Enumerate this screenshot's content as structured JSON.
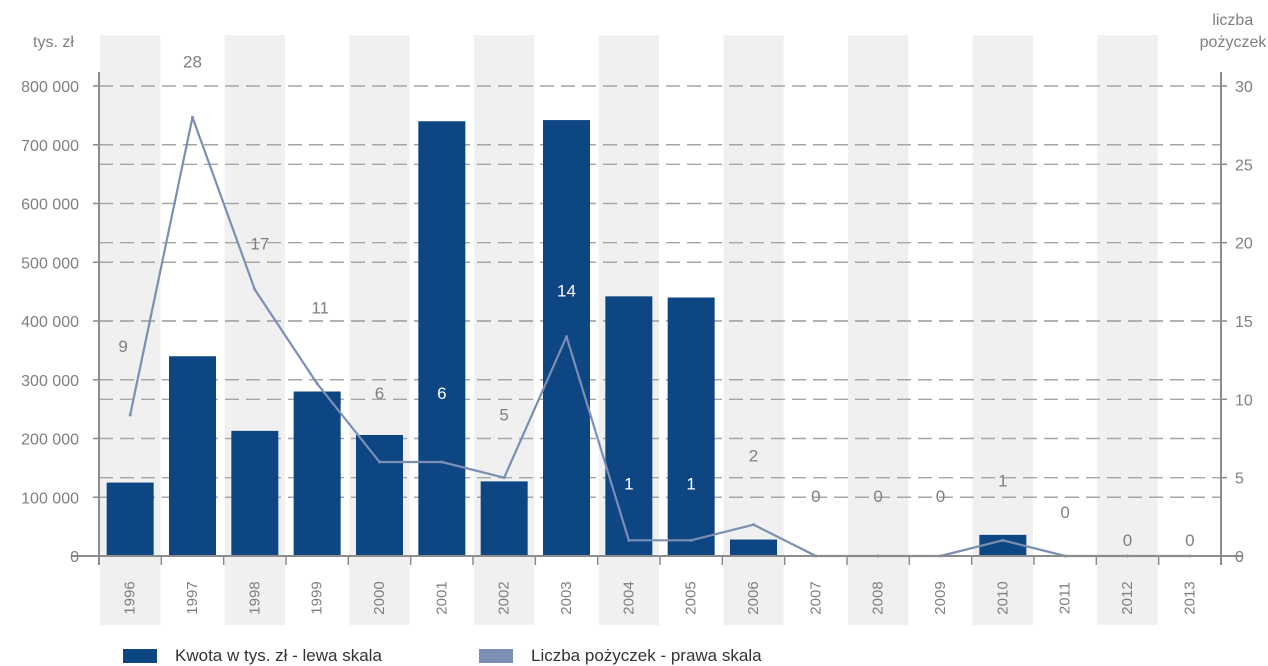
{
  "chart_data": {
    "type": "bar",
    "categories": [
      "1996",
      "1997",
      "1998",
      "1999",
      "2000",
      "2001",
      "2002",
      "2003",
      "2004",
      "2005",
      "2006",
      "2007",
      "2008",
      "2009",
      "2010",
      "2011",
      "2012",
      "2013"
    ],
    "series": [
      {
        "name": "Kwota w tys. zł - lewa skala",
        "type": "bar",
        "axis": "left",
        "values": [
          125000,
          340000,
          213000,
          280000,
          206000,
          740000,
          127000,
          742000,
          442000,
          440000,
          28000,
          0,
          0,
          0,
          36000,
          0,
          0,
          0
        ]
      },
      {
        "name": "Liczba pożyczek - prawa skala",
        "type": "line",
        "axis": "right",
        "values": [
          9,
          28,
          17,
          11,
          6,
          6,
          5,
          14,
          1,
          1,
          2,
          0,
          0,
          0,
          1,
          0,
          0,
          0
        ]
      }
    ],
    "data_labels": [
      "9",
      "28",
      "17",
      "11",
      "6",
      "6",
      "5",
      "14",
      "1",
      "1",
      "2",
      "0",
      "0",
      "0",
      "1",
      "0",
      "0",
      "0"
    ],
    "ylabel_left": "tys. zł",
    "ylabel_right": [
      "liczba",
      "pożyczek"
    ],
    "ylim_left": [
      0,
      800000
    ],
    "ylim_right": [
      0,
      30
    ],
    "yticks_left": [
      "0",
      "100 000",
      "200 000",
      "300 000",
      "400 000",
      "500 000",
      "600 000",
      "700 000",
      "800 000"
    ],
    "yticks_right": [
      "0",
      "5",
      "10",
      "15",
      "20",
      "25",
      "30"
    ],
    "grid": "horizontal dashed",
    "legend_position": "bottom",
    "colors": {
      "bar": "#0e4583",
      "line": "#7b8fb3",
      "band": "#f0f0f0",
      "grid": "#a6a6a6",
      "axis": "#8c8c8c",
      "label": "#7f7f7f"
    }
  }
}
